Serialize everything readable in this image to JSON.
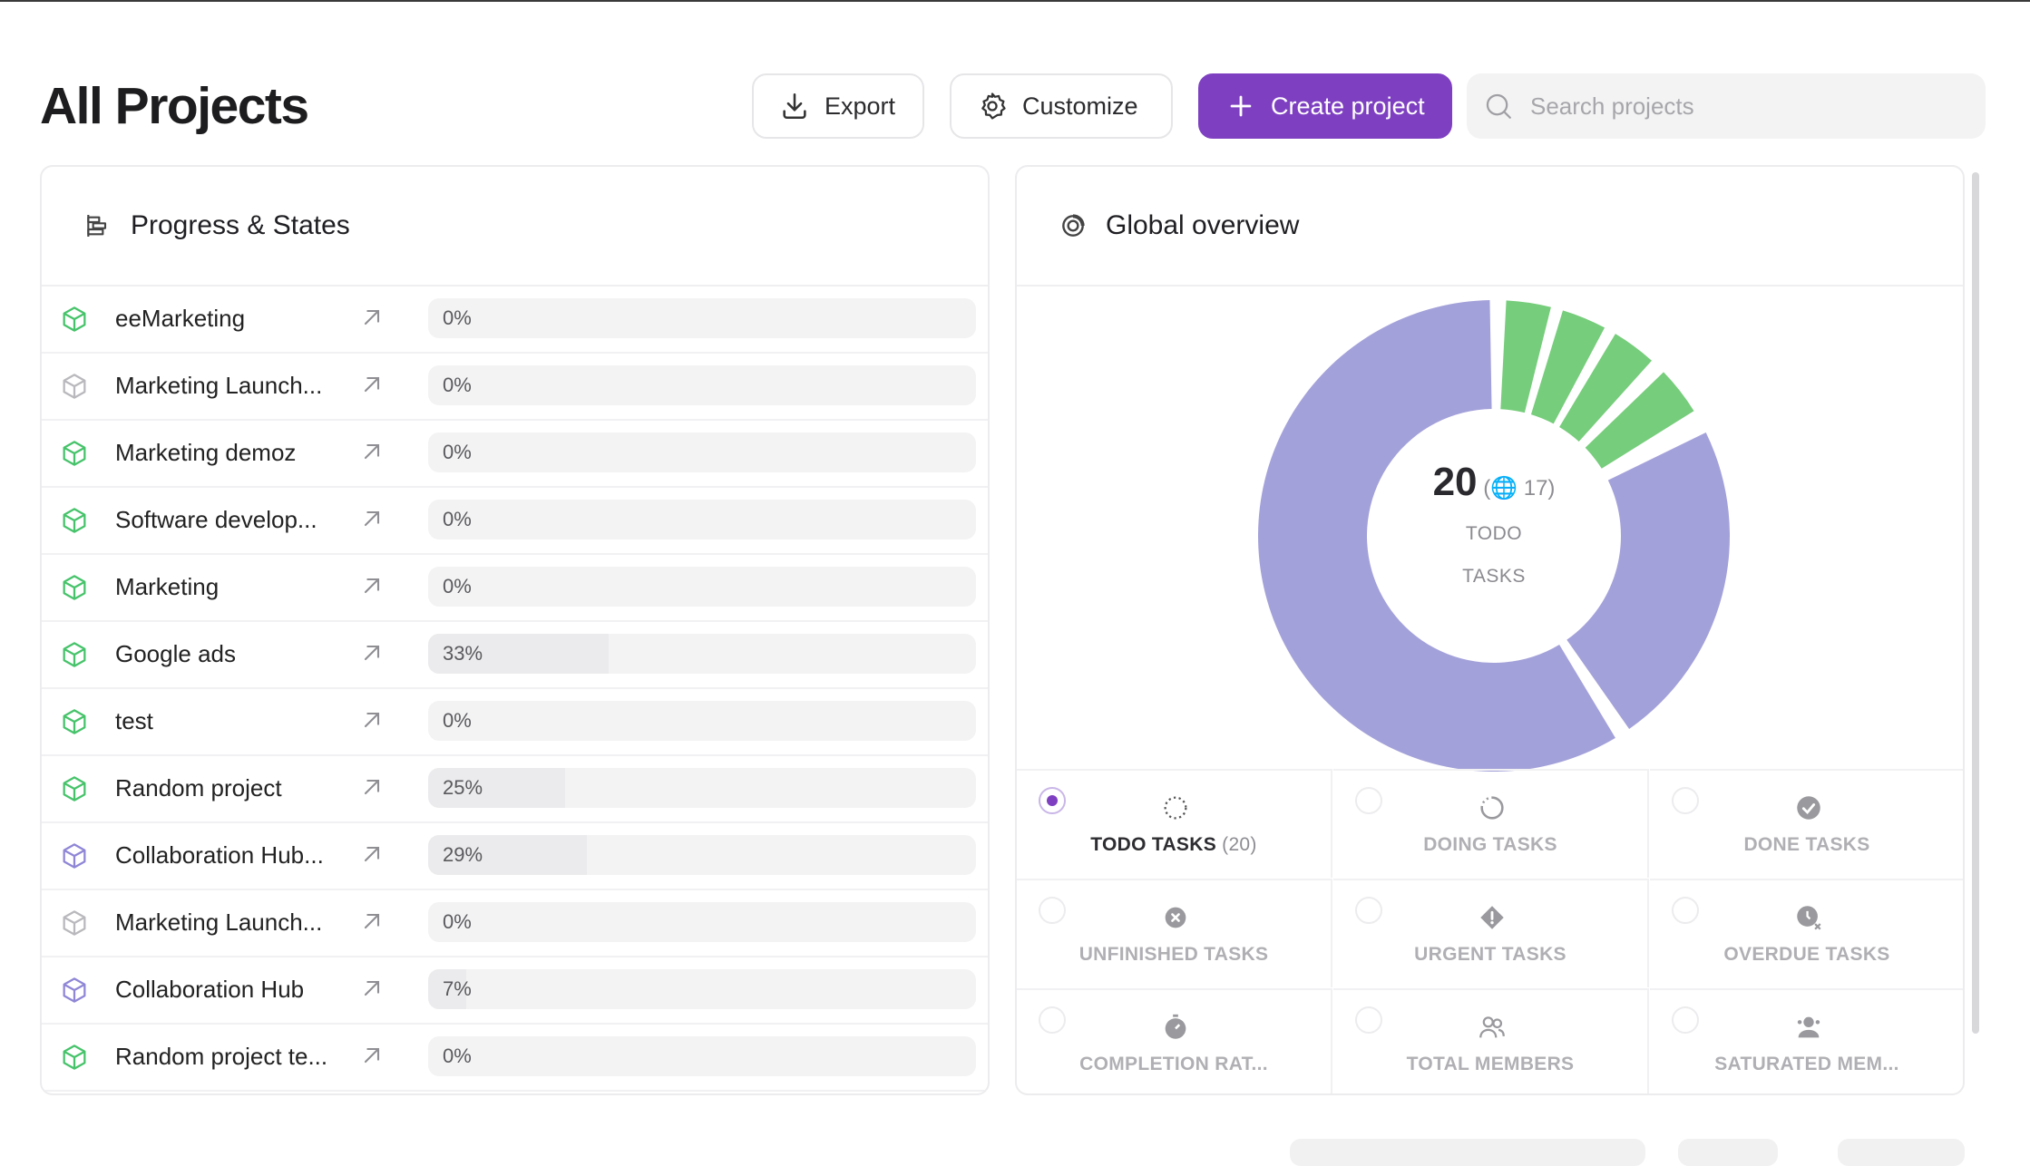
{
  "header": {
    "title": "All Projects",
    "export_label": "Export",
    "customize_label": "Customize",
    "create_label": "Create project",
    "search_placeholder": "Search projects"
  },
  "progress_panel": {
    "title": "Progress & States",
    "rows": [
      {
        "name": "eeMarketing",
        "percent": "0%",
        "progress": 0,
        "cube_color": "#46c36a"
      },
      {
        "name": "Marketing Launch...",
        "percent": "0%",
        "progress": 0,
        "cube_color": "#b9b9bd"
      },
      {
        "name": "Marketing demoz",
        "percent": "0%",
        "progress": 0,
        "cube_color": "#46c36a"
      },
      {
        "name": "Software develop...",
        "percent": "0%",
        "progress": 0,
        "cube_color": "#46c36a"
      },
      {
        "name": "Marketing",
        "percent": "0%",
        "progress": 0,
        "cube_color": "#46c36a"
      },
      {
        "name": "Google ads",
        "percent": "33%",
        "progress": 33,
        "cube_color": "#46c36a"
      },
      {
        "name": "test",
        "percent": "0%",
        "progress": 0,
        "cube_color": "#46c36a"
      },
      {
        "name": "Random project",
        "percent": "25%",
        "progress": 25,
        "cube_color": "#46c36a"
      },
      {
        "name": "Collaboration Hub...",
        "percent": "29%",
        "progress": 29,
        "cube_color": "#8f86d6"
      },
      {
        "name": "Marketing Launch...",
        "percent": "0%",
        "progress": 0,
        "cube_color": "#b9b9bd"
      },
      {
        "name": "Collaboration Hub",
        "percent": "7%",
        "progress": 7,
        "cube_color": "#8f86d6"
      },
      {
        "name": "Random project te...",
        "percent": "0%",
        "progress": 0,
        "cube_color": "#46c36a"
      }
    ]
  },
  "overview_panel": {
    "title": "Global overview",
    "center": {
      "value": "20",
      "secondary": "(🌐 17)",
      "line1": "TODO",
      "line2": "TASKS"
    },
    "donut_colors": {
      "todo": "#a3a1d9",
      "done": "#76cd7b"
    },
    "metrics": [
      {
        "label": "TODO TASKS",
        "count": "(20)",
        "icon": "dotted-circle-icon",
        "selected": true
      },
      {
        "label": "DOING TASKS",
        "count": "",
        "icon": "half-circle-icon",
        "selected": false
      },
      {
        "label": "DONE TASKS",
        "count": "",
        "icon": "check-circle-icon",
        "selected": false
      },
      {
        "label": "UNFINISHED TASKS",
        "count": "",
        "icon": "x-circle-icon",
        "selected": false
      },
      {
        "label": "URGENT TASKS",
        "count": "",
        "icon": "alert-diamond-icon",
        "selected": false
      },
      {
        "label": "OVERDUE TASKS",
        "count": "",
        "icon": "clock-x-icon",
        "selected": false
      },
      {
        "label": "COMPLETION RAT...",
        "count": "",
        "icon": "stopwatch-icon",
        "selected": false
      },
      {
        "label": "TOTAL MEMBERS",
        "count": "",
        "icon": "users-icon",
        "selected": false
      },
      {
        "label": "SATURATED MEM...",
        "count": "",
        "icon": "user-badge-icon",
        "selected": false
      }
    ]
  }
}
